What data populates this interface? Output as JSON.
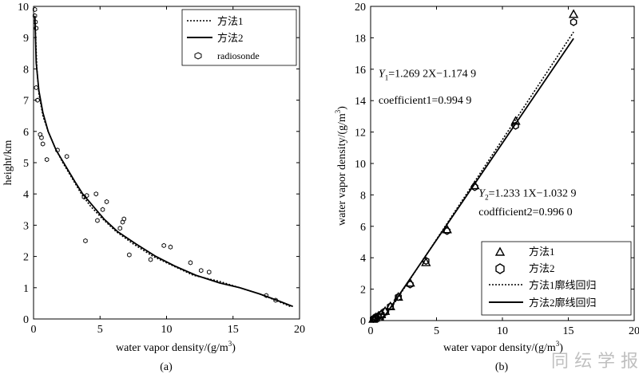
{
  "watermark": "同 纭 学 报",
  "chart_data": [
    {
      "type": "line",
      "panel_label": "(a)",
      "xlabel": "water vapor density/(g/m",
      "xlabel_sup": "3",
      "xlabel_tail": ")",
      "ylabel": "height/km",
      "xlim": [
        0,
        20
      ],
      "ylim": [
        0,
        10
      ],
      "xticks": [
        "0",
        "5",
        "10",
        "15",
        "20"
      ],
      "yticks": [
        "0",
        "1",
        "2",
        "3",
        "4",
        "5",
        "6",
        "7",
        "8",
        "9",
        "10"
      ],
      "legend_position": "top-right",
      "series": [
        {
          "name": "方法1",
          "style": "dotted",
          "x": [
            19.3,
            18.2,
            17.0,
            15.5,
            14.0,
            12.0,
            10.5,
            9.0,
            7.5,
            6.2,
            5.2,
            4.3,
            3.6,
            2.9,
            2.2,
            1.6,
            1.1,
            0.7,
            0.4,
            0.25,
            0.12
          ],
          "y": [
            0.4,
            0.6,
            0.8,
            1.0,
            1.2,
            1.4,
            1.7,
            2.0,
            2.4,
            2.8,
            3.2,
            3.6,
            4.0,
            4.5,
            5.0,
            5.5,
            6.0,
            6.5,
            7.2,
            8.0,
            9.5
          ]
        },
        {
          "name": "方法2",
          "style": "solid",
          "x": [
            19.5,
            18.3,
            17.0,
            15.5,
            14.0,
            12.2,
            10.6,
            9.2,
            7.7,
            6.3,
            5.3,
            4.5,
            3.7,
            3.1,
            2.4,
            1.7,
            1.1,
            0.7,
            0.4,
            0.2,
            0.1
          ],
          "y": [
            0.4,
            0.6,
            0.8,
            1.0,
            1.15,
            1.4,
            1.7,
            2.0,
            2.4,
            2.8,
            3.2,
            3.6,
            4.0,
            4.4,
            4.9,
            5.4,
            6.0,
            6.6,
            7.3,
            8.2,
            9.7
          ]
        },
        {
          "name": "radiosonde",
          "style": "marker",
          "x": [
            18.2,
            17.5,
            13.2,
            12.6,
            11.8,
            10.3,
            9.8,
            8.8,
            7.2,
            6.8,
            6.7,
            6.5,
            5.5,
            5.2,
            4.8,
            4.7,
            4.0,
            3.8,
            3.9,
            2.5,
            1.8,
            1.0,
            0.7,
            0.6,
            0.5,
            0.3,
            0.2,
            0.2,
            0.15,
            0.1,
            0.1
          ],
          "y": [
            0.6,
            0.75,
            1.5,
            1.55,
            1.8,
            2.3,
            2.35,
            1.9,
            2.05,
            3.2,
            3.1,
            2.9,
            3.75,
            3.5,
            3.15,
            4.0,
            3.95,
            3.9,
            2.5,
            5.2,
            5.4,
            5.1,
            5.6,
            5.8,
            5.9,
            7.0,
            7.4,
            9.3,
            9.5,
            9.7,
            9.9
          ]
        }
      ]
    },
    {
      "type": "scatter",
      "panel_label": "(b)",
      "xlabel": "water vapor density/(g/m",
      "xlabel_sup": "3",
      "xlabel_tail": ")",
      "ylabel": "water vapor density/(g/m",
      "ylabel_sup": "3",
      "ylabel_tail": ")",
      "xlim": [
        0,
        20
      ],
      "ylim": [
        0,
        20
      ],
      "xticks": [
        "0",
        "5",
        "10",
        "15",
        "20"
      ],
      "yticks": [
        "0",
        "2",
        "4",
        "6",
        "8",
        "10",
        "12",
        "14",
        "16",
        "18",
        "20"
      ],
      "legend_position": "bottom-right",
      "annotations": [
        {
          "text": "Y",
          "sub": "1",
          "rest": "=1.269 2X−1.174 9",
          "x": 0.6,
          "y": 15.5
        },
        {
          "text": "coefficient1=0.994 9",
          "x": 0.6,
          "y": 13.8
        },
        {
          "text": "Y",
          "sub": "2",
          "rest": "=1.233 1X−1.032 9",
          "x": 8.2,
          "y": 7.9
        },
        {
          "text": "codfficient2=0.996 0",
          "x": 8.2,
          "y": 6.7
        }
      ],
      "series": [
        {
          "name": "方法1",
          "style": "triangle",
          "x": [
            15.4,
            11.0,
            7.9,
            5.8,
            4.2,
            3.0,
            2.1,
            1.5,
            1.1,
            0.8,
            0.6,
            0.4,
            0.3,
            0.2
          ],
          "y": [
            19.5,
            12.7,
            8.6,
            5.8,
            3.7,
            2.4,
            1.5,
            0.9,
            0.6,
            0.4,
            0.3,
            0.2,
            0.15,
            0.1
          ]
        },
        {
          "name": "方法2",
          "style": "hexagon",
          "x": [
            15.4,
            11.0,
            7.9,
            5.8,
            4.2,
            3.0,
            2.1,
            1.5,
            1.1,
            0.8,
            0.6,
            0.4,
            0.3,
            0.2
          ],
          "y": [
            19.0,
            12.4,
            8.5,
            5.7,
            3.8,
            2.3,
            1.5,
            0.9,
            0.6,
            0.4,
            0.3,
            0.2,
            0.15,
            0.1
          ]
        },
        {
          "name": "方法1廓线回归",
          "style": "dotted",
          "slope": 1.2692,
          "intercept": -1.1749,
          "xrange": [
            0,
            15.4
          ]
        },
        {
          "name": "方法2廓线回归",
          "style": "solid",
          "slope": 1.2331,
          "intercept": -1.0329,
          "xrange": [
            0,
            15.4
          ]
        }
      ]
    }
  ]
}
